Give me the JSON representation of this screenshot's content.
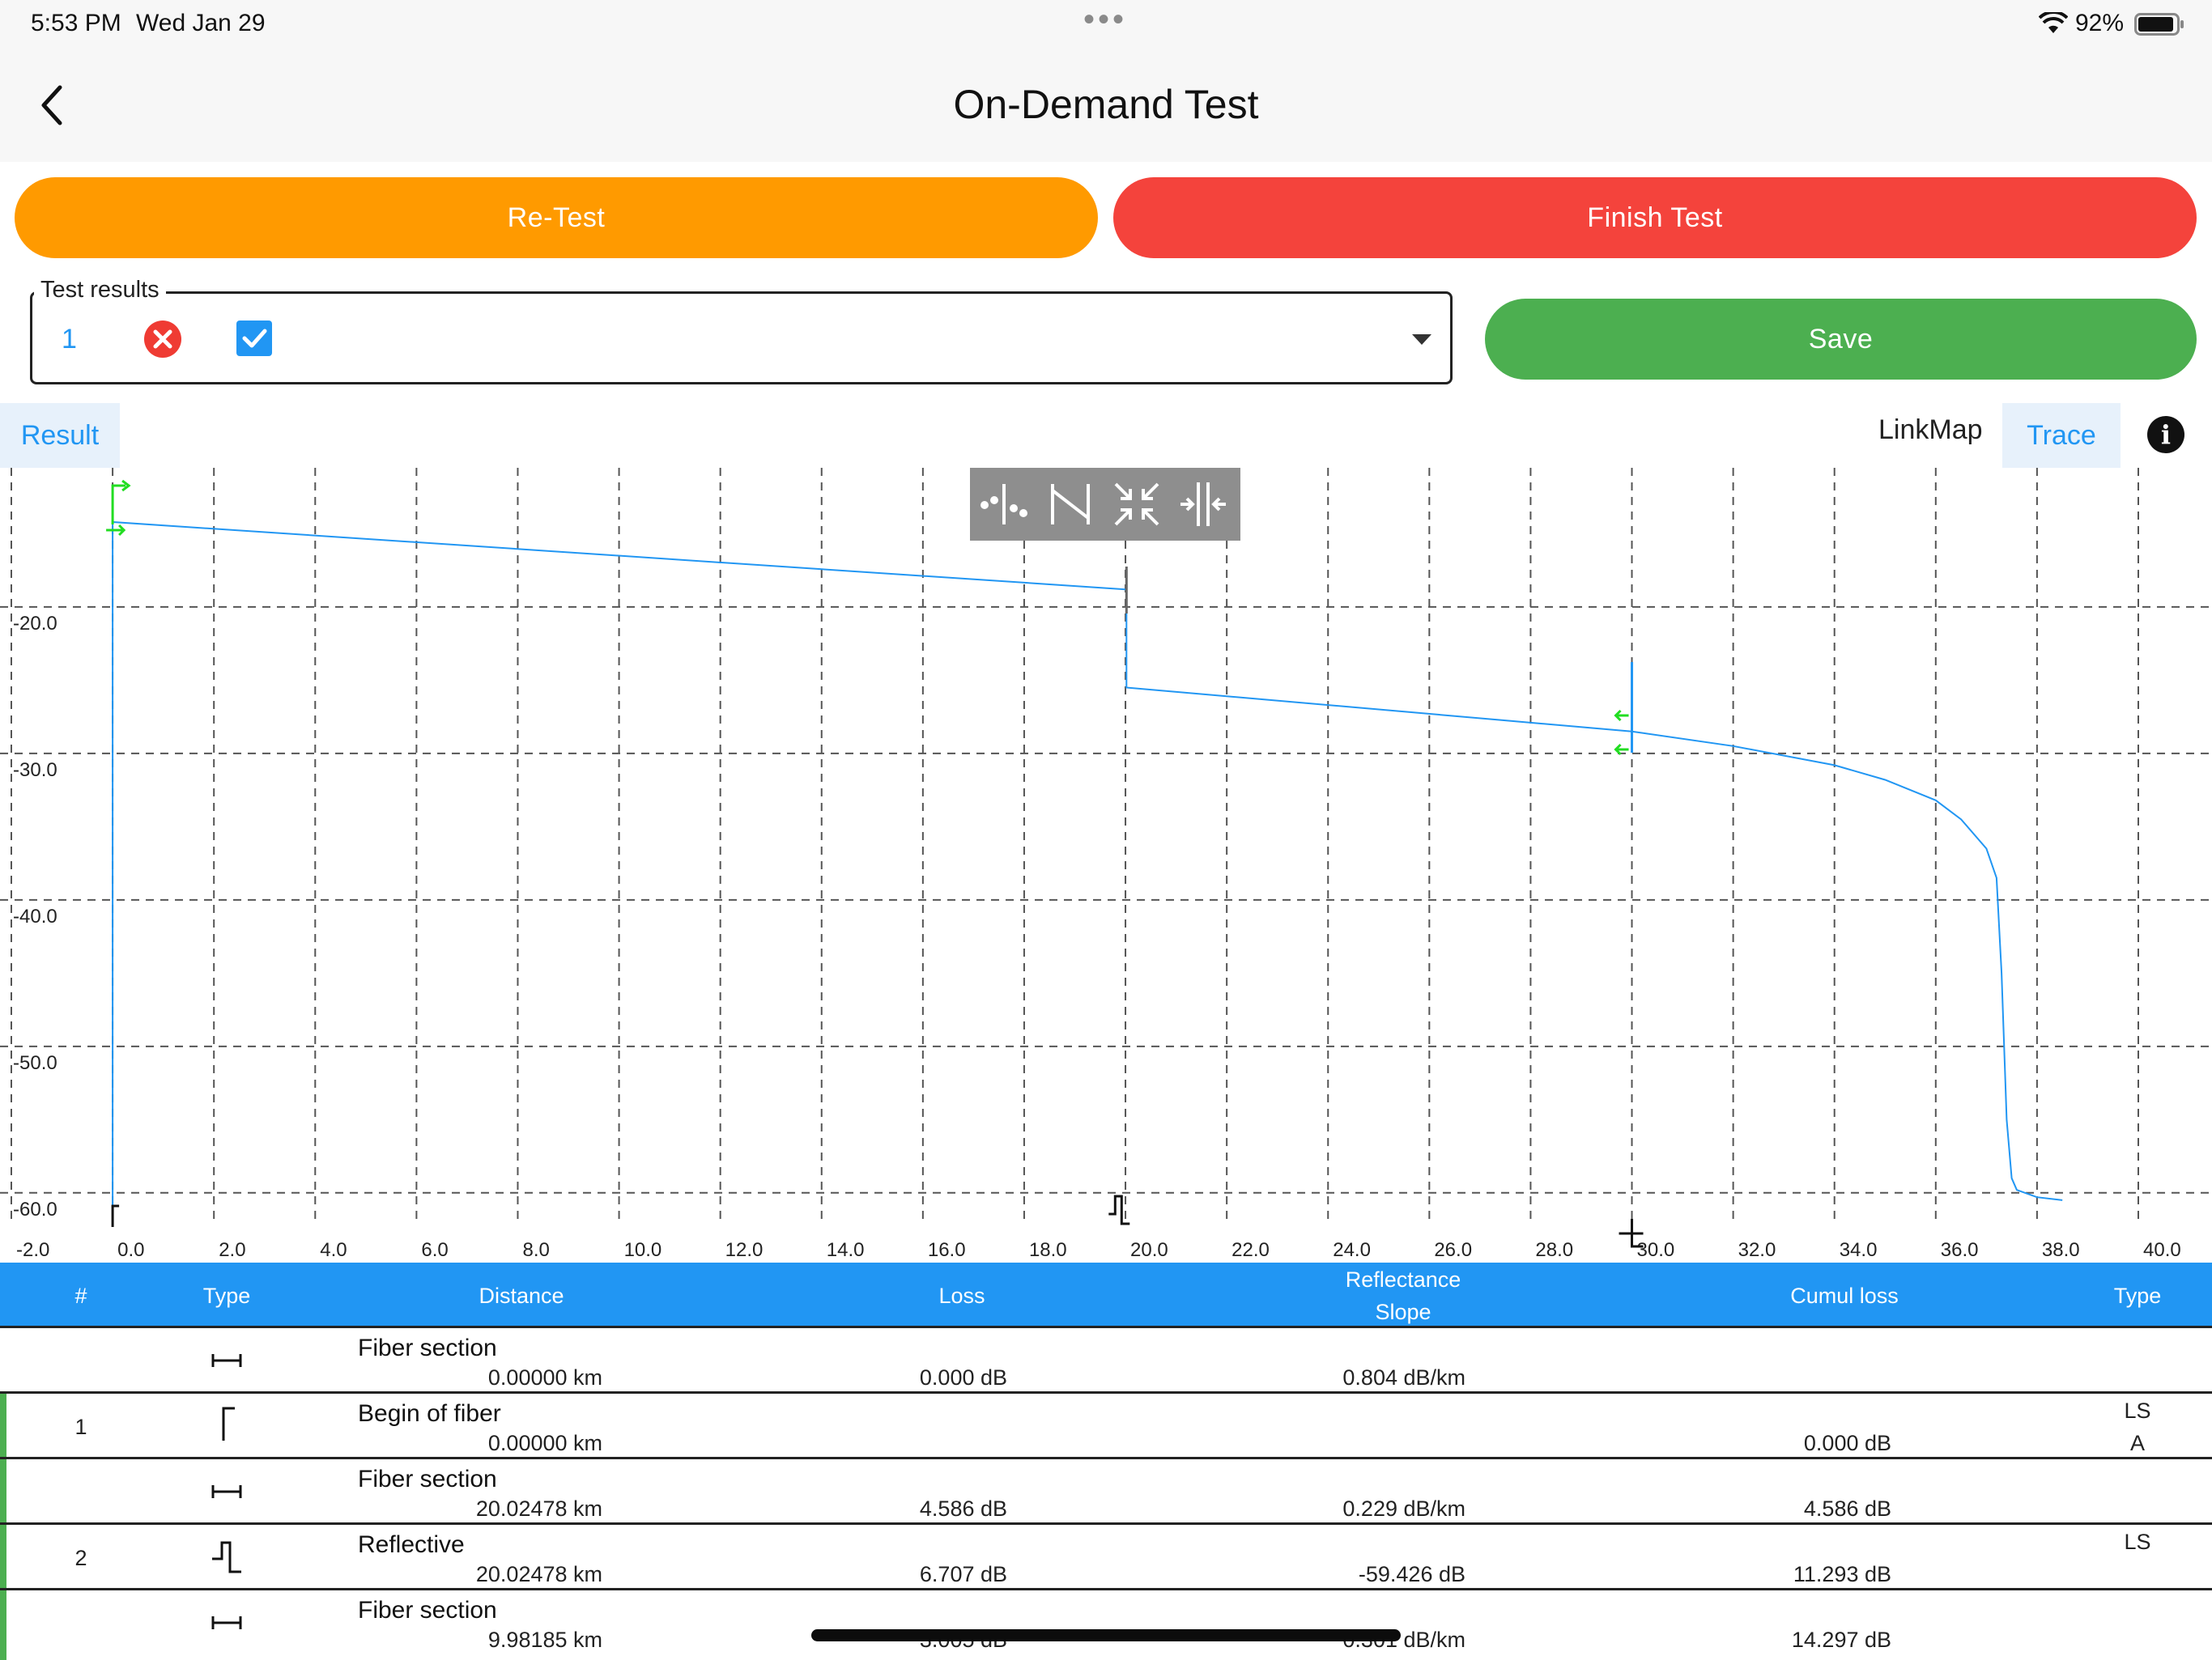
{
  "status_bar": {
    "time": "5:53 PM",
    "date": "Wed Jan 29",
    "more_dots": "•••",
    "battery_pct": "92%"
  },
  "nav": {
    "title": "On-Demand Test",
    "back_icon": "chevron-left-icon"
  },
  "buttons": {
    "retest": "Re-Test",
    "finish": "Finish Test",
    "save": "Save"
  },
  "colors": {
    "retest": "#ff9a00",
    "finish": "#f4433c",
    "save": "#4caf50",
    "accent": "#2196f3",
    "trace": "#2196f3",
    "marker": "#22dd22"
  },
  "test_results": {
    "legend": "Test results",
    "selected_number": "1",
    "fail_icon": "x-circle-icon",
    "check_icon": "checkbox-checked-icon"
  },
  "tabs": {
    "result": "Result",
    "linkmap": "LinkMap",
    "trace": "Trace",
    "info_icon": "info-icon"
  },
  "toolbar_icons": [
    "cursor-points-icon",
    "span-icon",
    "zoom-in-icon",
    "zoom-out-icon"
  ],
  "chart_data": {
    "type": "line",
    "xlim": [
      -2.0,
      40.0
    ],
    "ylim": [
      -62.0,
      -10.5
    ],
    "x_ticks": [
      "-2.0",
      "0.0",
      "2.0",
      "4.0",
      "6.0",
      "8.0",
      "10.0",
      "12.0",
      "14.0",
      "16.0",
      "18.0",
      "20.0",
      "22.0",
      "24.0",
      "26.0",
      "28.0",
      "30.0",
      "32.0",
      "34.0",
      "36.0",
      "38.0",
      "40.0"
    ],
    "y_ticks": [
      "-20.0",
      "-30.0",
      "-40.0",
      "-50.0",
      "-60.0"
    ],
    "grid": true,
    "series": [
      {
        "x": [
          0.0,
          0.0,
          20.0,
          20.02,
          20.02,
          30.0,
          32.0,
          34.0,
          35.0,
          36.0,
          36.5,
          37.0,
          37.2,
          37.3,
          37.4,
          37.5,
          37.6,
          38.0,
          38.5
        ],
        "y": [
          -61.0,
          -14.2,
          -18.8,
          -18.8,
          -25.5,
          -28.5,
          -29.5,
          -30.8,
          -31.8,
          -33.2,
          -34.5,
          -36.5,
          -38.5,
          -45.0,
          -55.0,
          -59.0,
          -59.8,
          -60.3,
          -60.5
        ]
      }
    ],
    "events": [
      {
        "x": 0.0,
        "type": "begin"
      },
      {
        "x": 20.02,
        "type": "reflective"
      },
      {
        "x": 30.0,
        "type": "end"
      }
    ]
  },
  "table": {
    "headers": {
      "num": "#",
      "type": "Type",
      "distance": "Distance",
      "loss": "Loss",
      "reflectance": "Reflectance",
      "slope": "Slope",
      "cumul_loss": "Cumul loss",
      "type2": "Type"
    },
    "rows": [
      {
        "num": "",
        "icon": "fiber-section-icon",
        "label": "Fiber section",
        "distance": "0.00000  km",
        "loss": "0.000  dB",
        "refl": "0.804  dB/km",
        "cumul": "",
        "t1": "",
        "t2": "",
        "marked": false
      },
      {
        "num": "1",
        "icon": "begin-of-fiber-icon",
        "label": "Begin of fiber",
        "distance": "0.00000  km",
        "loss": "",
        "refl": "",
        "cumul": "0.000  dB",
        "t1": "LS",
        "t2": "A",
        "marked": true
      },
      {
        "num": "",
        "icon": "fiber-section-icon",
        "label": "Fiber section",
        "distance": "20.02478  km",
        "loss": "4.586  dB",
        "refl": "0.229  dB/km",
        "cumul": "4.586  dB",
        "t1": "",
        "t2": "",
        "marked": true
      },
      {
        "num": "2",
        "icon": "reflective-event-icon",
        "label": "Reflective",
        "distance": "20.02478  km",
        "loss": "6.707  dB",
        "refl": "-59.426  dB",
        "cumul": "11.293  dB",
        "t1": "LS",
        "t2": "",
        "marked": true
      },
      {
        "num": "",
        "icon": "fiber-section-icon",
        "label": "Fiber section",
        "distance": "9.98185  km",
        "loss": "3.005  dB",
        "refl": "0.301  dB/km",
        "cumul": "14.297  dB",
        "t1": "",
        "t2": "",
        "marked": true
      }
    ]
  }
}
